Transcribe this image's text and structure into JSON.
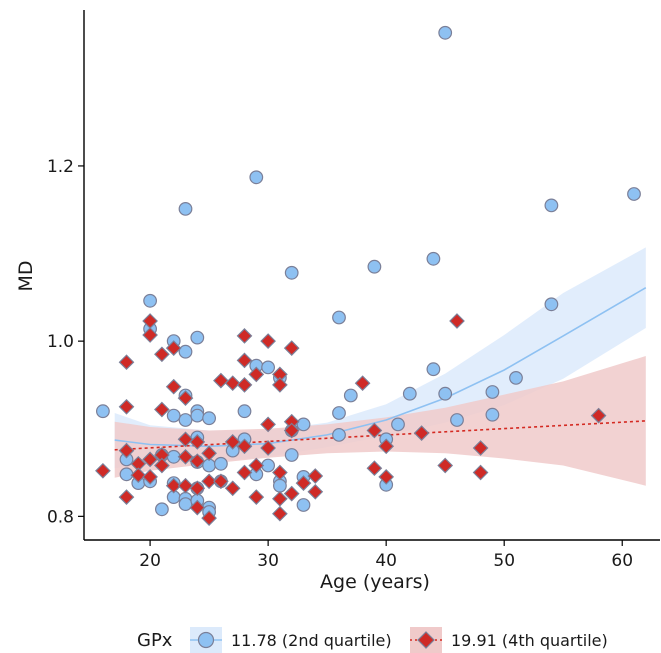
{
  "chart_data": {
    "type": "scatter",
    "xlabel": "Age (years)",
    "ylabel": "MD",
    "xlim": [
      14.4,
      63.2
    ],
    "ylim": [
      0.773,
      1.378
    ],
    "x_ticks": [
      20,
      30,
      40,
      50,
      60
    ],
    "y_ticks": [
      0.8,
      1.0,
      1.2
    ],
    "x_tick_labels": [
      "20",
      "30",
      "40",
      "50",
      "60"
    ],
    "y_tick_labels": [
      "0.8",
      "1.0",
      "1.2"
    ],
    "grid": false,
    "legend": {
      "title": "GPx",
      "position": "bottom"
    },
    "series": [
      {
        "name": "11.78 (2nd quartile)",
        "marker": "circle",
        "color": "#8EC1F2",
        "edge_color": "#7A7F98",
        "line_color": "#8EC1F2",
        "line_style": "solid",
        "band_color": "#DCEAFB",
        "fit": {
          "x": [
            17,
            20,
            25,
            30,
            35,
            40,
            45,
            50,
            55,
            62
          ],
          "y": [
            0.887,
            0.882,
            0.88,
            0.883,
            0.893,
            0.91,
            0.935,
            0.967,
            1.006,
            1.061
          ]
        },
        "band_upper": {
          "x": [
            17,
            20,
            25,
            30,
            35,
            40,
            45,
            50,
            55,
            62
          ],
          "y": [
            0.918,
            0.904,
            0.898,
            0.898,
            0.907,
            0.928,
            0.963,
            1.007,
            1.055,
            1.107
          ]
        },
        "band_lower": {
          "x": [
            17,
            20,
            25,
            30,
            35,
            40,
            45,
            50,
            55,
            62
          ],
          "y": [
            0.855,
            0.86,
            0.862,
            0.868,
            0.879,
            0.892,
            0.907,
            0.927,
            0.957,
            1.015
          ]
        },
        "points": [
          [
            16,
            0.92
          ],
          [
            18,
            0.865
          ],
          [
            18,
            0.848
          ],
          [
            19,
            0.838
          ],
          [
            20,
            1.046
          ],
          [
            20,
            1.014
          ],
          [
            20,
            0.84
          ],
          [
            21,
            0.87
          ],
          [
            21,
            0.808
          ],
          [
            22,
            1.0
          ],
          [
            22,
            0.915
          ],
          [
            22,
            0.868
          ],
          [
            22,
            0.838
          ],
          [
            22,
            0.822
          ],
          [
            23,
            1.151
          ],
          [
            23,
            0.988
          ],
          [
            23,
            0.938
          ],
          [
            23,
            0.91
          ],
          [
            23,
            0.82
          ],
          [
            23,
            0.814
          ],
          [
            24,
            1.004
          ],
          [
            24,
            0.92
          ],
          [
            24,
            0.915
          ],
          [
            24,
            0.89
          ],
          [
            24,
            0.862
          ],
          [
            24,
            0.832
          ],
          [
            24,
            0.818
          ],
          [
            25,
            0.912
          ],
          [
            25,
            0.858
          ],
          [
            25,
            0.81
          ],
          [
            25,
            0.805
          ],
          [
            26,
            0.86
          ],
          [
            26,
            0.84
          ],
          [
            27,
            0.875
          ],
          [
            28,
            0.92
          ],
          [
            28,
            0.888
          ],
          [
            29,
            1.187
          ],
          [
            29,
            0.972
          ],
          [
            29,
            0.848
          ],
          [
            30,
            0.97
          ],
          [
            30,
            0.858
          ],
          [
            31,
            0.958
          ],
          [
            31,
            0.84
          ],
          [
            31,
            0.835
          ],
          [
            32,
            1.078
          ],
          [
            32,
            0.898
          ],
          [
            32,
            0.87
          ],
          [
            33,
            0.905
          ],
          [
            33,
            0.845
          ],
          [
            33,
            0.813
          ],
          [
            36,
            1.027
          ],
          [
            36,
            0.918
          ],
          [
            36,
            0.893
          ],
          [
            37,
            0.938
          ],
          [
            39,
            1.085
          ],
          [
            40,
            0.888
          ],
          [
            40,
            0.836
          ],
          [
            41,
            0.905
          ],
          [
            42,
            0.94
          ],
          [
            44,
            1.094
          ],
          [
            44,
            0.968
          ],
          [
            45,
            1.352
          ],
          [
            45,
            0.94
          ],
          [
            46,
            0.91
          ],
          [
            49,
            0.942
          ],
          [
            49,
            0.916
          ],
          [
            51,
            0.958
          ],
          [
            54,
            1.155
          ],
          [
            54,
            1.042
          ],
          [
            61,
            1.168
          ]
        ]
      },
      {
        "name": "19.91 (4th quartile)",
        "marker": "diamond",
        "color": "#CF2A26",
        "edge_color": "#7A7F98",
        "line_color": "#D42A22",
        "line_style": "dotted",
        "band_color": "#F0CACA",
        "fit": {
          "x": [
            17,
            62
          ],
          "y": [
            0.876,
            0.909
          ]
        },
        "band_upper": {
          "x": [
            17,
            20,
            25,
            30,
            35,
            40,
            45,
            50,
            55,
            62
          ],
          "y": [
            0.908,
            0.902,
            0.898,
            0.9,
            0.905,
            0.913,
            0.924,
            0.939,
            0.954,
            0.983
          ]
        },
        "band_lower": {
          "x": [
            17,
            20,
            25,
            30,
            35,
            40,
            45,
            50,
            55,
            62
          ],
          "y": [
            0.844,
            0.852,
            0.86,
            0.867,
            0.872,
            0.874,
            0.872,
            0.866,
            0.858,
            0.835
          ]
        },
        "points": [
          [
            16,
            0.852
          ],
          [
            18,
            0.976
          ],
          [
            18,
            0.925
          ],
          [
            18,
            0.875
          ],
          [
            18,
            0.822
          ],
          [
            19,
            0.86
          ],
          [
            19,
            0.847
          ],
          [
            20,
            1.023
          ],
          [
            20,
            1.007
          ],
          [
            20,
            0.865
          ],
          [
            20,
            0.845
          ],
          [
            21,
            0.985
          ],
          [
            21,
            0.922
          ],
          [
            21,
            0.87
          ],
          [
            21,
            0.858
          ],
          [
            22,
            0.992
          ],
          [
            22,
            0.948
          ],
          [
            22,
            0.835
          ],
          [
            23,
            0.935
          ],
          [
            23,
            0.888
          ],
          [
            23,
            0.868
          ],
          [
            23,
            0.835
          ],
          [
            24,
            0.885
          ],
          [
            24,
            0.863
          ],
          [
            24,
            0.832
          ],
          [
            24,
            0.81
          ],
          [
            25,
            0.872
          ],
          [
            25,
            0.84
          ],
          [
            25,
            0.798
          ],
          [
            26,
            0.955
          ],
          [
            26,
            0.84
          ],
          [
            27,
            0.952
          ],
          [
            27,
            0.885
          ],
          [
            27,
            0.832
          ],
          [
            28,
            1.006
          ],
          [
            28,
            0.978
          ],
          [
            28,
            0.95
          ],
          [
            28,
            0.88
          ],
          [
            28,
            0.85
          ],
          [
            29,
            0.962
          ],
          [
            29,
            0.858
          ],
          [
            29,
            0.822
          ],
          [
            30,
            1.0
          ],
          [
            30,
            0.905
          ],
          [
            30,
            0.878
          ],
          [
            31,
            0.962
          ],
          [
            31,
            0.95
          ],
          [
            31,
            0.85
          ],
          [
            31,
            0.82
          ],
          [
            31,
            0.803
          ],
          [
            32,
            0.992
          ],
          [
            32,
            0.908
          ],
          [
            32,
            0.898
          ],
          [
            32,
            0.826
          ],
          [
            33,
            0.838
          ],
          [
            34,
            0.846
          ],
          [
            34,
            0.828
          ],
          [
            38,
            0.952
          ],
          [
            39,
            0.898
          ],
          [
            39,
            0.855
          ],
          [
            40,
            0.88
          ],
          [
            40,
            0.845
          ],
          [
            43,
            0.895
          ],
          [
            45,
            0.858
          ],
          [
            46,
            1.023
          ],
          [
            48,
            0.878
          ],
          [
            48,
            0.85
          ],
          [
            58,
            0.915
          ]
        ]
      }
    ]
  }
}
